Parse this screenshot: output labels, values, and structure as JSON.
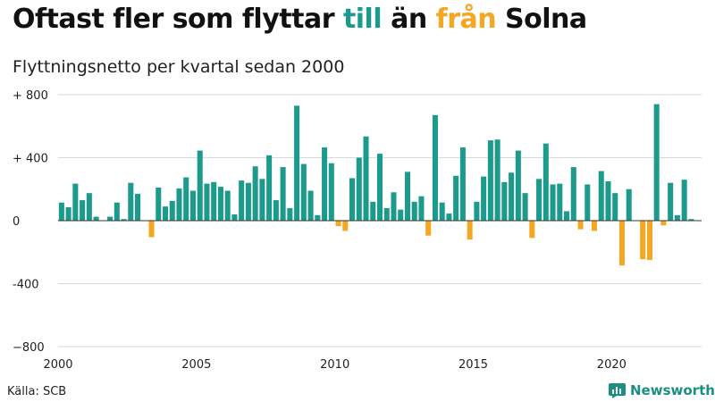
{
  "header": {
    "title_part1": "Oftast fler som flyttar ",
    "title_till": "till",
    "title_part2": " än ",
    "title_fran": "från",
    "title_part3": " Solna",
    "subtitle": "Flyttningsnetto per kvartal sedan 2000"
  },
  "colors": {
    "positive": "#1c9a8c",
    "negative": "#f5a623",
    "grid": "#d9d9d9",
    "axis": "#333333"
  },
  "footer": {
    "source": "Källa: SCB",
    "brand": "Newsworthy",
    "brand_icon": "newsworthy-logo-icon"
  },
  "chart_data": {
    "type": "bar",
    "title": "Oftast fler som flyttar till än från Solna",
    "subtitle": "Flyttningsnetto per kvartal sedan 2000",
    "x_start_year": 2000,
    "periods_per_year": 4,
    "xlim": [
      2000,
      2023.25
    ],
    "ylim": [
      -800,
      800
    ],
    "yticks": [
      800,
      400,
      0,
      -400,
      -800
    ],
    "ytick_labels": [
      "+ 800",
      "+ 400",
      "0",
      "-400",
      "−800"
    ],
    "xticks": [
      2000,
      2005,
      2010,
      2015,
      2020
    ],
    "xtick_labels": [
      "2000",
      "2005",
      "2010",
      "2015",
      "2020"
    ],
    "grid": true,
    "values": [
      115,
      85,
      235,
      130,
      175,
      25,
      0,
      25,
      115,
      10,
      240,
      170,
      0,
      -105,
      210,
      90,
      125,
      205,
      275,
      190,
      445,
      235,
      245,
      215,
      190,
      40,
      255,
      240,
      345,
      265,
      415,
      130,
      340,
      80,
      730,
      360,
      190,
      35,
      465,
      365,
      -35,
      -65,
      270,
      400,
      535,
      120,
      425,
      80,
      180,
      70,
      310,
      120,
      155,
      -95,
      670,
      115,
      45,
      285,
      465,
      -120,
      120,
      280,
      510,
      515,
      245,
      305,
      445,
      175,
      -110,
      265,
      490,
      230,
      235,
      60,
      340,
      -55,
      230,
      -65,
      315,
      250,
      175,
      -285,
      200,
      0,
      -245,
      -250,
      740,
      -30,
      240,
      35,
      260,
      10
    ]
  }
}
